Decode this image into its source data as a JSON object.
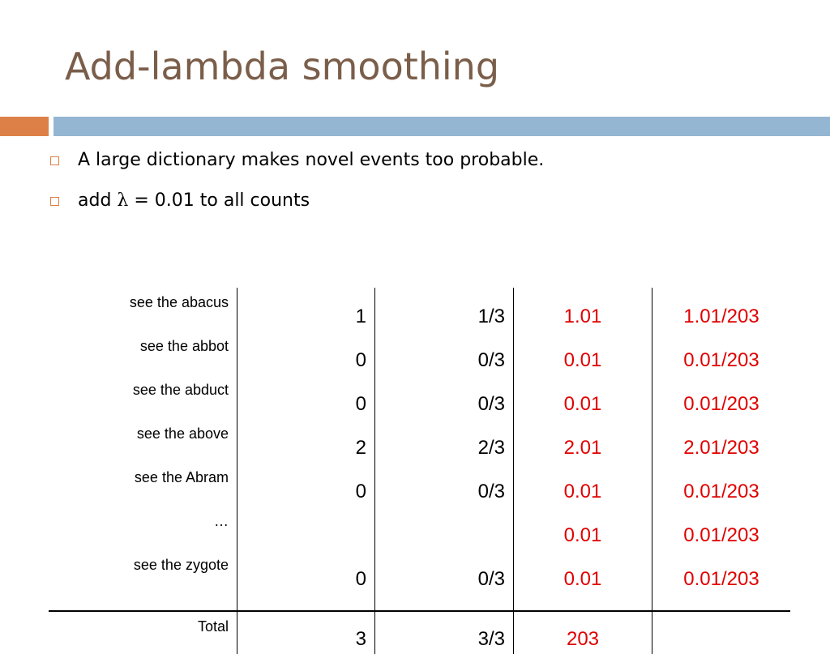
{
  "slide": {
    "title": "Add-lambda smoothing",
    "bullets": [
      "A large dictionary makes novel events too probable.",
      {
        "prefix": "add ",
        "symbol": "λ",
        "suffix": " = 0.01 to all counts"
      }
    ]
  },
  "colors": {
    "title": "#7a5e4a",
    "accent_orange": "#dd8047",
    "accent_blue": "#94b6d2",
    "highlight_red": "#e00000"
  },
  "table": {
    "rows": [
      {
        "label": "see the abacus",
        "count": "1",
        "prob": "1/3",
        "smoothed": "1.01",
        "smoothed_prob": "1.01/203"
      },
      {
        "label": "see the abbot",
        "count": "0",
        "prob": "0/3",
        "smoothed": "0.01",
        "smoothed_prob": "0.01/203"
      },
      {
        "label": "see the abduct",
        "count": "0",
        "prob": "0/3",
        "smoothed": "0.01",
        "smoothed_prob": "0.01/203"
      },
      {
        "label": "see the above",
        "count": "2",
        "prob": "2/3",
        "smoothed": "2.01",
        "smoothed_prob": "2.01/203"
      },
      {
        "label": "see the Abram",
        "count": "0",
        "prob": "0/3",
        "smoothed": "0.01",
        "smoothed_prob": "0.01/203"
      },
      {
        "label": "…",
        "count": "",
        "prob": "",
        "smoothed": "0.01",
        "smoothed_prob": "0.01/203"
      },
      {
        "label": "see the zygote",
        "count": "0",
        "prob": "0/3",
        "smoothed": "0.01",
        "smoothed_prob": "0.01/203"
      }
    ],
    "total": {
      "label": "Total",
      "count": "3",
      "prob": "3/3",
      "smoothed": "203",
      "smoothed_prob": ""
    }
  }
}
